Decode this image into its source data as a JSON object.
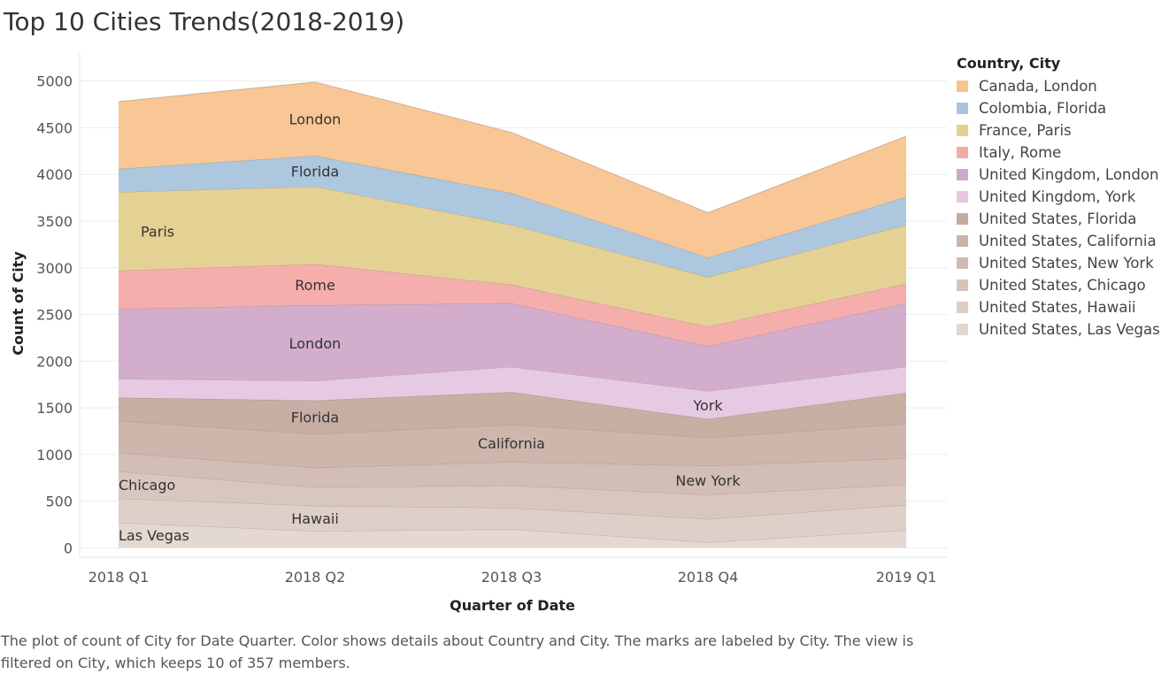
{
  "title": "Top 10 Cities Trends(2018-2019)",
  "caption": "The plot of count of City for Date Quarter.  Color shows details about Country and City.  The marks are labeled by City. The view is filtered on City, which keeps 10 of 357 members.",
  "legend": {
    "title": "Country, City",
    "items": [
      {
        "label": "Canada, London",
        "color": "#f9c38f"
      },
      {
        "label": "Colombia, Florida",
        "color": "#a9c4dc"
      },
      {
        "label": "France, Paris",
        "color": "#e3d08e"
      },
      {
        "label": "Italy, Rome",
        "color": "#f5aaa9"
      },
      {
        "label": "United Kingdom, London",
        "color": "#d1a9c9"
      },
      {
        "label": "United Kingdom, York",
        "color": "#e5c7e2"
      },
      {
        "label": "United States, Florida",
        "color": "#c4ab9f"
      },
      {
        "label": "United States, California",
        "color": "#cab3a8"
      },
      {
        "label": "United States, New York",
        "color": "#d0bbb1"
      },
      {
        "label": "United States, Chicago",
        "color": "#d6c4bb"
      },
      {
        "label": "United States, Hawaii",
        "color": "#dccdc5"
      },
      {
        "label": "United States, Las Vegas",
        "color": "#e3d6d0"
      }
    ]
  },
  "chart_data": {
    "type": "area",
    "stacked": true,
    "title": "Top 10 Cities Trends(2018-2019)",
    "xlabel": "Quarter of Date",
    "ylabel": "Count of City",
    "categories": [
      "2018 Q1",
      "2018 Q2",
      "2018 Q3",
      "2018 Q4",
      "2019 Q1"
    ],
    "ylim": [
      -100,
      5300
    ],
    "yticks": [
      0,
      500,
      1000,
      1500,
      2000,
      2500,
      3000,
      3500,
      4000,
      4500,
      5000
    ],
    "grid": true,
    "legend_position": "right",
    "series": [
      {
        "name": "United States, Las Vegas",
        "values": [
          270,
          180,
          200,
          60,
          190
        ]
      },
      {
        "name": "United States, Hawaii",
        "values": [
          260,
          270,
          230,
          250,
          270
        ]
      },
      {
        "name": "United States, Chicago",
        "values": [
          290,
          200,
          240,
          260,
          220
        ]
      },
      {
        "name": "United States, New York",
        "values": [
          200,
          210,
          250,
          310,
          280
        ]
      },
      {
        "name": "United States, California",
        "values": [
          340,
          360,
          400,
          300,
          370
        ]
      },
      {
        "name": "United States, Florida",
        "values": [
          250,
          360,
          350,
          200,
          330
        ]
      },
      {
        "name": "United Kingdom, York",
        "values": [
          200,
          210,
          270,
          300,
          280
        ]
      },
      {
        "name": "United Kingdom, London",
        "values": [
          750,
          810,
          680,
          480,
          680
        ]
      },
      {
        "name": "Italy, Rome",
        "values": [
          410,
          440,
          200,
          210,
          210
        ]
      },
      {
        "name": "France, Paris",
        "values": [
          840,
          830,
          640,
          530,
          630
        ]
      },
      {
        "name": "Colombia, Florida",
        "values": [
          250,
          330,
          340,
          210,
          300
        ]
      },
      {
        "name": "Canada, London",
        "values": [
          720,
          790,
          650,
          480,
          650
        ]
      }
    ],
    "labels": [
      {
        "text": "Las Vegas",
        "series": "United States, Las Vegas",
        "category": "2018 Q1"
      },
      {
        "text": "Hawaii",
        "series": "United States, Hawaii",
        "category": "2018 Q2"
      },
      {
        "text": "Chicago",
        "series": "United States, Chicago",
        "category": "2018 Q1"
      },
      {
        "text": "New York",
        "series": "United States, New York",
        "category": "2018 Q4"
      },
      {
        "text": "California",
        "series": "United States, California",
        "category": "2018 Q3"
      },
      {
        "text": "Florida",
        "series": "United States, Florida",
        "category": "2018 Q2"
      },
      {
        "text": "York",
        "series": "United Kingdom, York",
        "category": "2018 Q4"
      },
      {
        "text": "London",
        "series": "United Kingdom, London",
        "category": "2018 Q2"
      },
      {
        "text": "Rome",
        "series": "Italy, Rome",
        "category": "2018 Q2"
      },
      {
        "text": "Paris",
        "series": "France, Paris",
        "category": "2018 Q1"
      },
      {
        "text": "Florida",
        "series": "Colombia, Florida",
        "category": "2018 Q2"
      },
      {
        "text": "London",
        "series": "Canada, London",
        "category": "2018 Q2"
      }
    ]
  }
}
